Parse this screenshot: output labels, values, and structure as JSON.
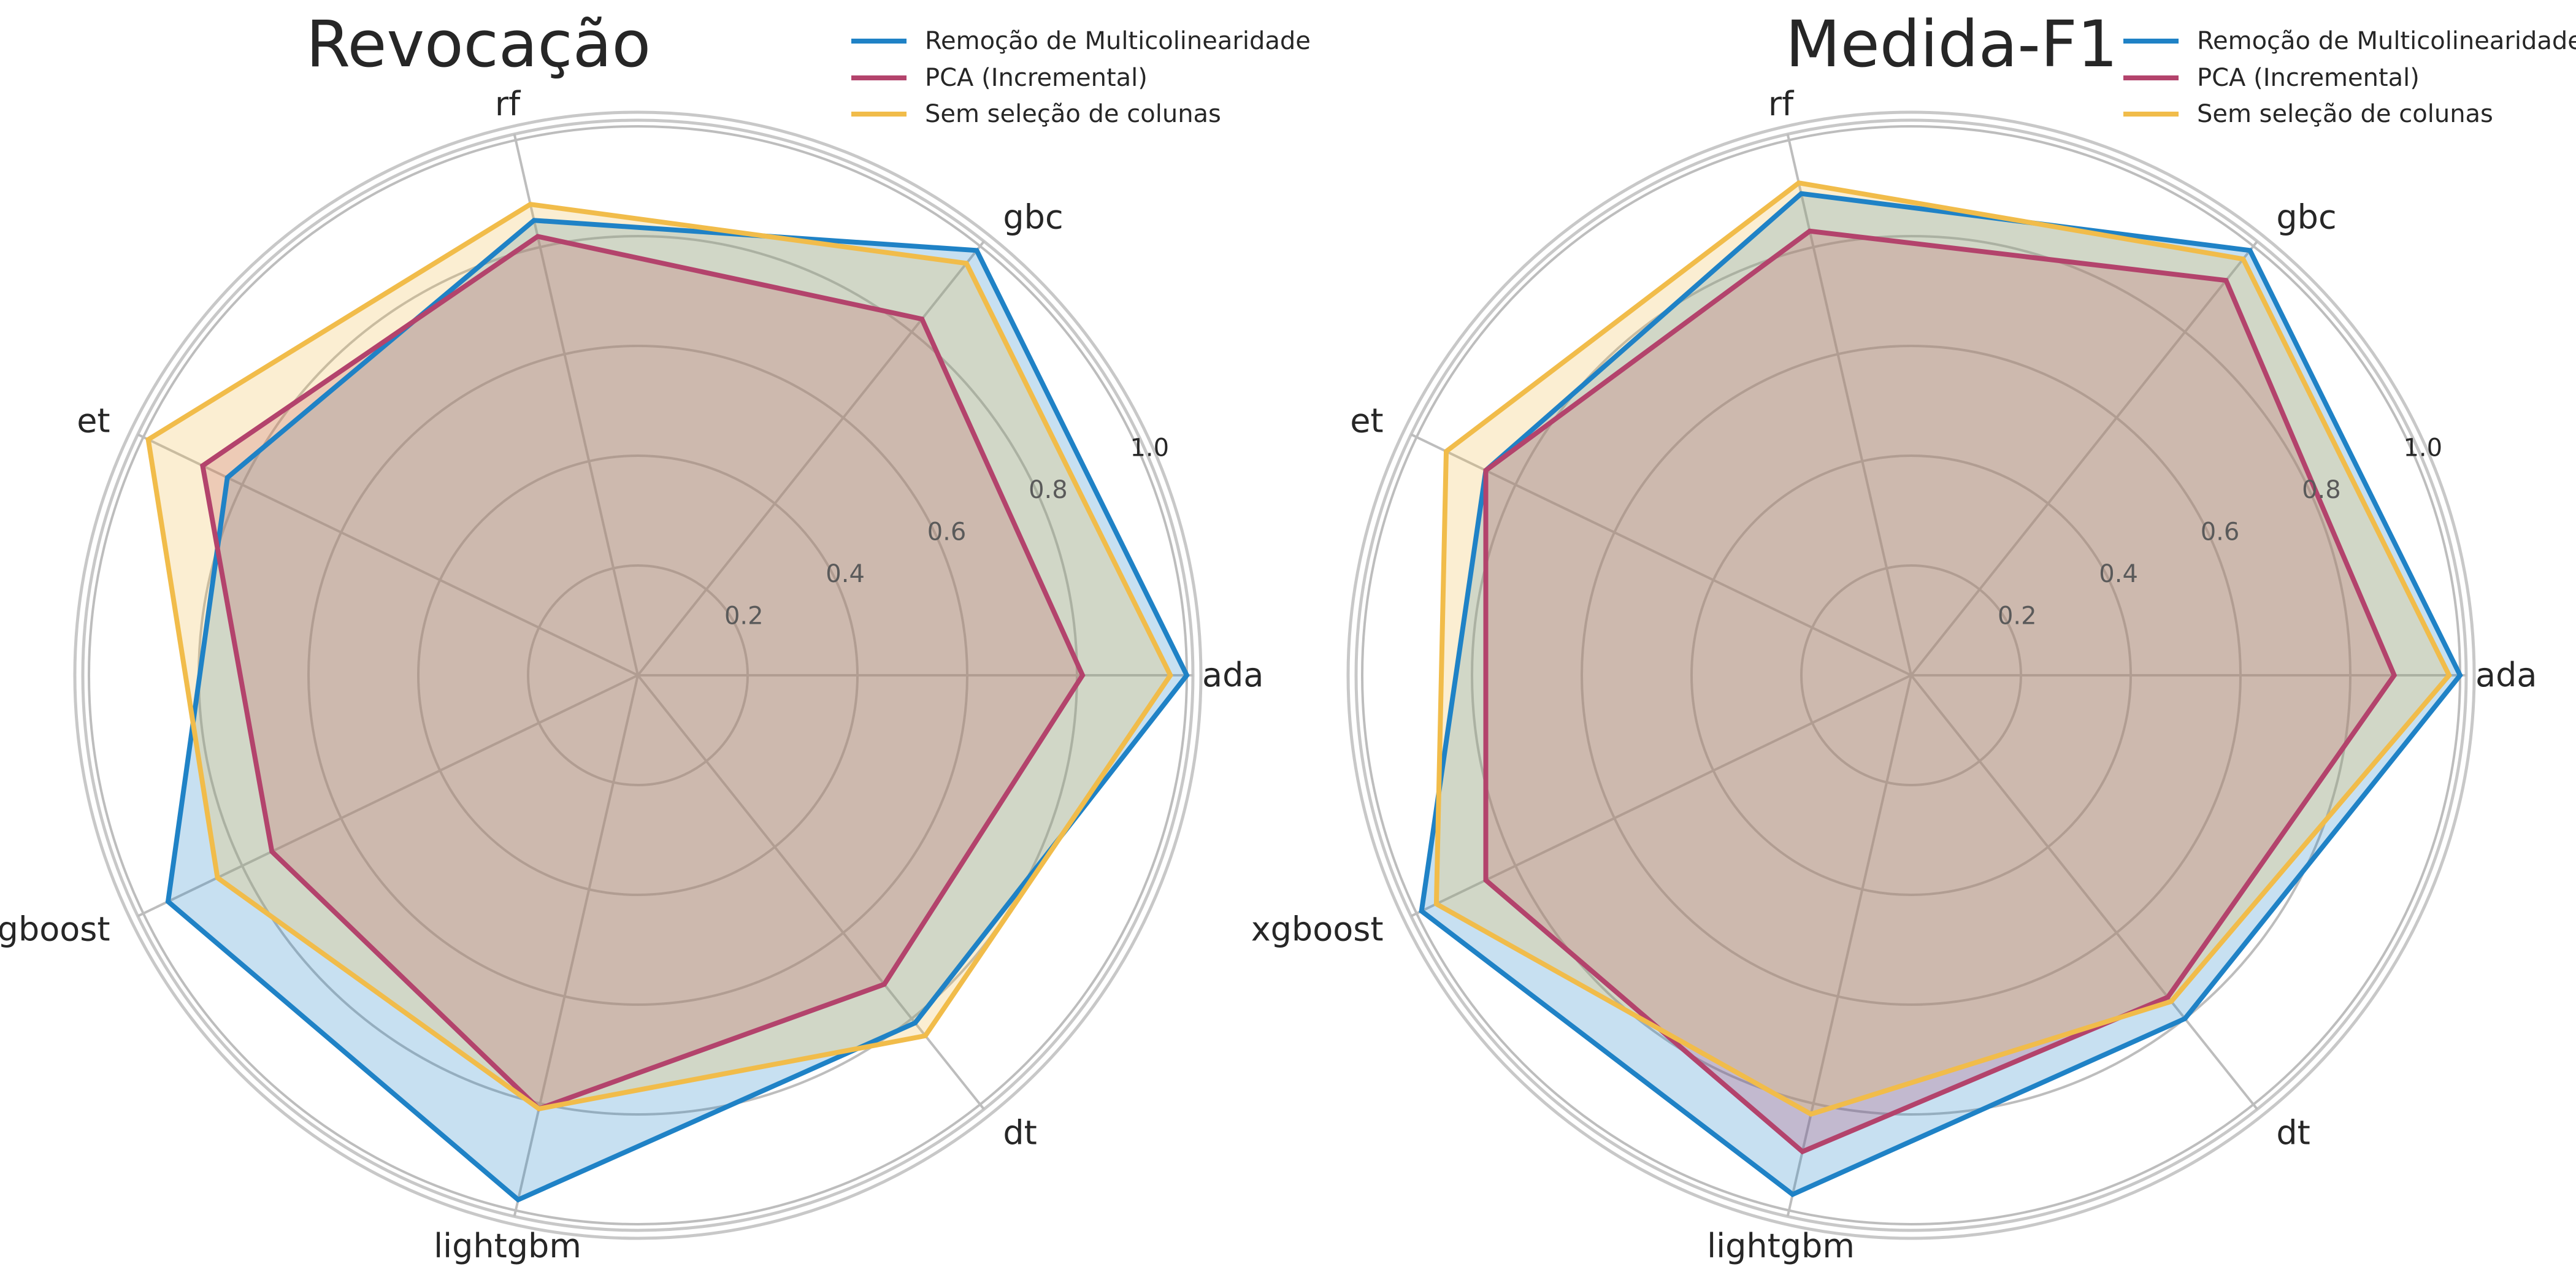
{
  "chart_data": [
    {
      "type": "radar",
      "title": "Revocação",
      "categories": [
        "ada",
        "gbc",
        "rf",
        "et",
        "xgboost",
        "lightgbm",
        "dt"
      ],
      "rticks": [
        "0.2",
        "0.4",
        "0.6",
        "0.8",
        "1.0"
      ],
      "rlim": [
        0,
        1.0
      ],
      "grid": true,
      "legend_position": "top-right",
      "series": [
        {
          "name": "Remoção de Multicolinearidade",
          "color": "#1f82c6",
          "values": [
            1.0,
            0.99,
            0.85,
            0.83,
            0.95,
            0.98,
            0.81
          ]
        },
        {
          "name": "PCA (Incremental)",
          "color": "#b3436c",
          "values": [
            0.81,
            0.83,
            0.82,
            0.88,
            0.74,
            0.81,
            0.72
          ]
        },
        {
          "name": "Sem seleção de colunas",
          "color": "#f1bc4a",
          "values": [
            0.97,
            0.96,
            0.88,
            0.99,
            0.85,
            0.81,
            0.84
          ]
        }
      ]
    },
    {
      "type": "radar",
      "title": "Medida-F1",
      "categories": [
        "ada",
        "gbc",
        "rf",
        "et",
        "xgboost",
        "lightgbm",
        "dt"
      ],
      "rticks": [
        "0.2",
        "0.4",
        "0.6",
        "0.8",
        "1.0"
      ],
      "rlim": [
        0,
        1.0
      ],
      "grid": true,
      "legend_position": "top-right",
      "series": [
        {
          "name": "Remoção de Multicolinearidade",
          "color": "#1f82c6",
          "values": [
            1.0,
            0.99,
            0.9,
            0.86,
            0.99,
            0.97,
            0.8
          ]
        },
        {
          "name": "PCA (Incremental)",
          "color": "#b3436c",
          "values": [
            0.88,
            0.92,
            0.83,
            0.86,
            0.86,
            0.89,
            0.75
          ]
        },
        {
          "name": "Sem seleção de colunas",
          "color": "#f1bc4a",
          "values": [
            0.98,
            0.97,
            0.92,
            0.94,
            0.96,
            0.82,
            0.76
          ]
        }
      ]
    }
  ]
}
